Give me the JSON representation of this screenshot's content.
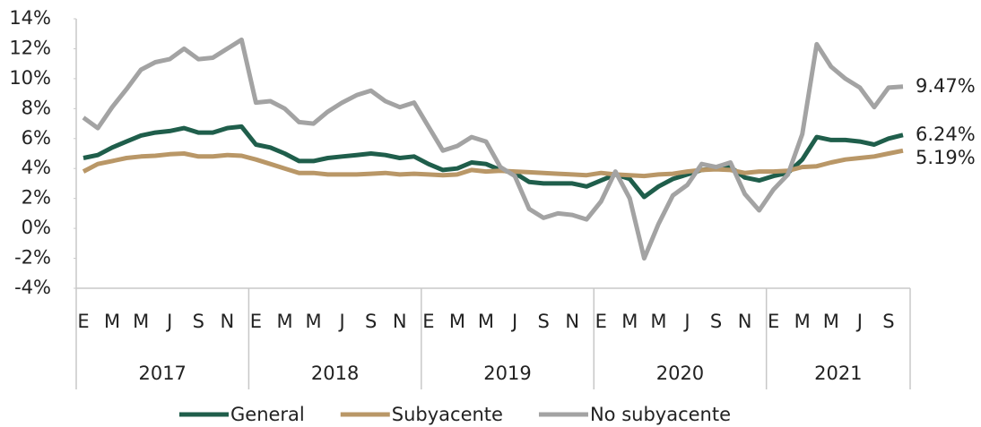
{
  "chart_data": {
    "type": "line",
    "categories": [
      "E",
      null,
      "M",
      null,
      "M",
      null,
      "J",
      null,
      "S",
      null,
      "N",
      null,
      "E",
      null,
      "M",
      null,
      "M",
      null,
      "J",
      null,
      "S",
      null,
      "N",
      null,
      "E",
      null,
      "M",
      null,
      "M",
      null,
      "J",
      null,
      "S",
      null,
      "N",
      null,
      "E",
      null,
      "M",
      null,
      "M",
      null,
      "J",
      null,
      "S",
      null,
      "N",
      null,
      "E",
      null,
      "M",
      null,
      "M",
      null,
      "J",
      null,
      "S",
      null
    ],
    "year_groups": [
      "2017",
      "2018",
      "2019",
      "2020",
      "2021"
    ],
    "ylim": [
      -4,
      14
    ],
    "yticks": [
      {
        "value": -4,
        "label": "-4%"
      },
      {
        "value": -2,
        "label": "-2%"
      },
      {
        "value": 0,
        "label": "0%"
      },
      {
        "value": 2,
        "label": "2%"
      },
      {
        "value": 4,
        "label": "4%"
      },
      {
        "value": 6,
        "label": "6%"
      },
      {
        "value": 8,
        "label": "8%"
      },
      {
        "value": 10,
        "label": "10%"
      },
      {
        "value": 12,
        "label": "12%"
      },
      {
        "value": 14,
        "label": "14%"
      }
    ],
    "legend": "bottom",
    "series": [
      {
        "name": "General",
        "color": "#1f5e4b",
        "values": [
          4.7,
          4.9,
          5.4,
          5.8,
          6.2,
          6.4,
          6.5,
          6.7,
          6.4,
          6.4,
          6.7,
          6.8,
          5.6,
          5.4,
          5.0,
          4.5,
          4.5,
          4.7,
          4.8,
          4.9,
          5.0,
          4.9,
          4.7,
          4.8,
          4.3,
          3.9,
          4.0,
          4.4,
          4.3,
          3.9,
          3.7,
          3.1,
          3.0,
          3.0,
          3.0,
          2.8,
          3.2,
          3.6,
          3.3,
          2.1,
          2.8,
          3.3,
          3.6,
          3.9,
          4.0,
          4.1,
          3.4,
          3.2,
          3.5,
          3.7,
          4.6,
          6.1,
          5.9,
          5.9,
          5.8,
          5.6,
          6.0,
          6.24
        ],
        "value_labels": [
          null,
          null,
          null,
          null,
          null,
          null,
          null,
          null,
          null,
          null,
          null,
          null,
          null,
          null,
          null,
          null,
          null,
          null,
          null,
          null,
          null,
          null,
          null,
          null,
          null,
          null,
          null,
          null,
          null,
          null,
          null,
          null,
          null,
          null,
          null,
          null,
          null,
          null,
          null,
          null,
          null,
          null,
          null,
          null,
          null,
          null,
          null,
          null,
          null,
          null,
          null,
          null,
          null,
          null,
          null,
          null,
          null,
          "6.24%"
        ]
      },
      {
        "name": "Subyacente",
        "color": "#b99767",
        "values": [
          3.8,
          4.3,
          4.5,
          4.7,
          4.8,
          4.85,
          4.95,
          5.0,
          4.8,
          4.8,
          4.9,
          4.85,
          4.6,
          4.3,
          4.0,
          3.7,
          3.7,
          3.6,
          3.6,
          3.6,
          3.65,
          3.7,
          3.6,
          3.65,
          3.6,
          3.55,
          3.6,
          3.9,
          3.8,
          3.85,
          3.8,
          3.75,
          3.7,
          3.65,
          3.6,
          3.55,
          3.7,
          3.6,
          3.55,
          3.5,
          3.6,
          3.65,
          3.8,
          3.9,
          3.95,
          3.9,
          3.7,
          3.8,
          3.8,
          3.85,
          4.1,
          4.15,
          4.4,
          4.6,
          4.7,
          4.8,
          5.0,
          5.19
        ],
        "value_labels": [
          null,
          null,
          null,
          null,
          null,
          null,
          null,
          null,
          null,
          null,
          null,
          null,
          null,
          null,
          null,
          null,
          null,
          null,
          null,
          null,
          null,
          null,
          null,
          null,
          null,
          null,
          null,
          null,
          null,
          null,
          null,
          null,
          null,
          null,
          null,
          null,
          null,
          null,
          null,
          null,
          null,
          null,
          null,
          null,
          null,
          null,
          null,
          null,
          null,
          null,
          null,
          null,
          null,
          null,
          null,
          null,
          null,
          "5.19%"
        ]
      },
      {
        "name": "No subyacente",
        "color": "#a3a3a3",
        "values": [
          7.4,
          6.7,
          8.1,
          9.3,
          10.6,
          11.1,
          11.3,
          12.0,
          11.3,
          11.4,
          12.0,
          12.6,
          8.4,
          8.5,
          8.0,
          7.1,
          7.0,
          7.8,
          8.4,
          8.9,
          9.2,
          8.5,
          8.1,
          8.4,
          6.8,
          5.2,
          5.5,
          6.1,
          5.8,
          4.1,
          3.5,
          1.3,
          0.7,
          1.0,
          0.9,
          0.6,
          1.8,
          3.8,
          2.0,
          -2.0,
          0.3,
          2.2,
          2.9,
          4.3,
          4.1,
          4.4,
          2.3,
          1.2,
          2.6,
          3.6,
          6.3,
          12.3,
          10.8,
          10.0,
          9.4,
          8.1,
          9.4,
          9.47
        ],
        "value_labels": [
          null,
          null,
          null,
          null,
          null,
          null,
          null,
          null,
          null,
          null,
          null,
          null,
          null,
          null,
          null,
          null,
          null,
          null,
          null,
          null,
          null,
          null,
          null,
          null,
          null,
          null,
          null,
          null,
          null,
          null,
          null,
          null,
          null,
          null,
          null,
          null,
          null,
          null,
          null,
          null,
          null,
          null,
          null,
          null,
          null,
          null,
          null,
          null,
          null,
          null,
          null,
          null,
          null,
          null,
          null,
          null,
          null,
          "9.47%"
        ]
      }
    ]
  }
}
